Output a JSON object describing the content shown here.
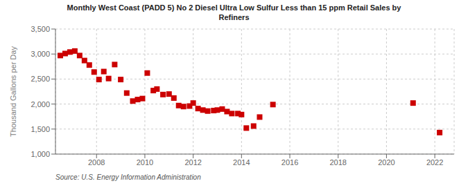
{
  "chart_data": {
    "type": "scatter",
    "title": "Monthly West Coast (PADD 5) No 2 Diesel Ultra Low Sulfur Less than 15 ppm Retail Sales by\nRefiners",
    "y_label": "Thousand Gallons per Day",
    "annotation": "Source: U.S. Energy Information Administration",
    "color": "#cc0000",
    "marker": "square",
    "grid": true,
    "xlim": [
      2006.3,
      2022.8
    ],
    "xticks": [
      2008,
      2010,
      2012,
      2014,
      2016,
      2018,
      2020,
      2022
    ],
    "ylim": [
      1000,
      3500
    ],
    "yticks": [
      {
        "value": 1000,
        "label": "1,000"
      },
      {
        "value": 1500,
        "label": "1,500"
      },
      {
        "value": 2000,
        "label": "2,000"
      },
      {
        "value": 2500,
        "label": "2,500"
      },
      {
        "value": 3000,
        "label": "3,000"
      },
      {
        "value": 3500,
        "label": "3,500"
      }
    ],
    "x": [
      2006.5,
      2006.7,
      2006.9,
      2007.1,
      2007.3,
      2007.5,
      2007.7,
      2007.9,
      2008.1,
      2008.3,
      2008.5,
      2008.75,
      2009.0,
      2009.25,
      2009.5,
      2009.7,
      2009.9,
      2010.1,
      2010.35,
      2010.5,
      2010.75,
      2011.0,
      2011.2,
      2011.4,
      2011.6,
      2011.85,
      2012.0,
      2012.2,
      2012.4,
      2012.6,
      2012.85,
      2013.0,
      2013.2,
      2013.4,
      2013.6,
      2013.85,
      2014.0,
      2014.2,
      2014.5,
      2014.75,
      2015.3,
      2021.1,
      2022.2
    ],
    "values": [
      2970,
      3010,
      3040,
      3060,
      2970,
      2870,
      2780,
      2640,
      2490,
      2650,
      2510,
      2790,
      2490,
      2220,
      2060,
      2090,
      2110,
      2620,
      2270,
      2300,
      2190,
      2200,
      2120,
      1970,
      1950,
      1960,
      2020,
      1910,
      1880,
      1860,
      1870,
      1880,
      1900,
      1850,
      1810,
      1810,
      1790,
      1520,
      1560,
      1740,
      1990,
      2020,
      1430
    ]
  }
}
